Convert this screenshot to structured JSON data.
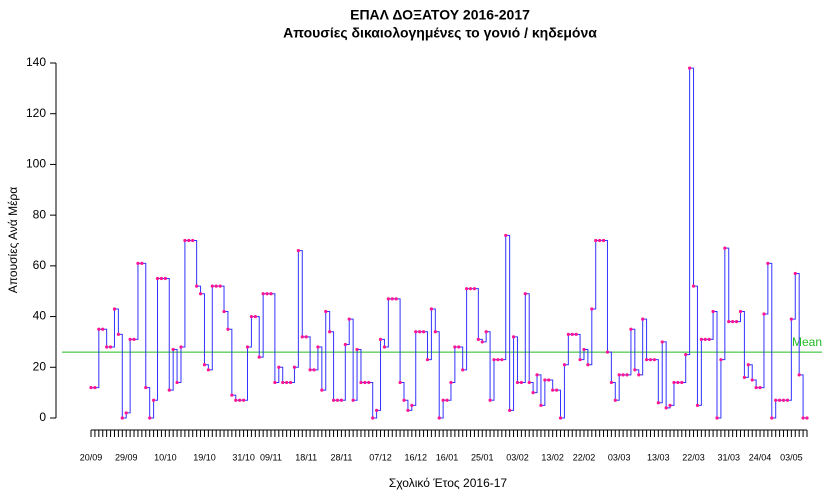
{
  "chart_data": {
    "type": "step",
    "title": "ΕΠΑΛ ΔΟΞΑΤΟΥ 2016-2017",
    "subtitle": "Απουσίες δικαιολογημένες το γονιό / κηδεμόνα",
    "x_label": "Σχολικό Έτος 2016-17",
    "y_label": "Απουσίες Ανά Μέρα",
    "categories": [
      "20/09",
      null,
      null,
      null,
      null,
      null,
      null,
      null,
      null,
      "29/09",
      null,
      null,
      null,
      null,
      null,
      null,
      null,
      null,
      null,
      "10/10",
      null,
      null,
      null,
      null,
      null,
      null,
      null,
      null,
      null,
      "19/10",
      null,
      null,
      null,
      null,
      null,
      null,
      null,
      null,
      null,
      "31/10",
      null,
      null,
      null,
      null,
      null,
      null,
      "09/11",
      null,
      null,
      null,
      null,
      null,
      null,
      null,
      null,
      "18/11",
      null,
      null,
      null,
      null,
      null,
      null,
      null,
      null,
      "28/11",
      null,
      null,
      null,
      null,
      null,
      null,
      null,
      null,
      null,
      "07/12",
      null,
      null,
      null,
      null,
      null,
      null,
      null,
      null,
      "16/12",
      null,
      null,
      null,
      null,
      null,
      null,
      null,
      "16/01",
      null,
      null,
      null,
      null,
      null,
      null,
      null,
      null,
      "25/01",
      null,
      null,
      null,
      null,
      null,
      null,
      null,
      null,
      "03/02",
      null,
      null,
      null,
      null,
      null,
      null,
      null,
      null,
      "13/02",
      null,
      null,
      null,
      null,
      null,
      null,
      null,
      "22/02",
      null,
      null,
      null,
      null,
      null,
      null,
      null,
      null,
      "03/03",
      null,
      null,
      null,
      null,
      null,
      null,
      null,
      null,
      null,
      "13/03",
      null,
      null,
      null,
      null,
      null,
      null,
      null,
      null,
      "22/03",
      null,
      null,
      null,
      null,
      null,
      null,
      null,
      null,
      "31/03",
      null,
      null,
      null,
      null,
      null,
      null,
      null,
      "24/04",
      null,
      null,
      null,
      null,
      null,
      null,
      null,
      "03/05",
      null,
      null,
      null,
      null
    ],
    "series": [
      {
        "line_color": "#3333ff",
        "point_color": "#ff1493",
        "values": [
          12,
          12,
          35,
          35,
          28,
          28,
          43,
          33,
          0,
          2,
          31,
          31,
          61,
          61,
          12,
          0,
          7,
          55,
          55,
          55,
          11,
          27,
          14,
          28,
          70,
          70,
          70,
          52,
          49,
          21,
          19,
          52,
          52,
          52,
          42,
          35,
          9,
          7,
          7,
          7,
          28,
          40,
          40,
          24,
          49,
          49,
          49,
          14,
          20,
          14,
          14,
          14,
          20,
          66,
          32,
          32,
          19,
          19,
          28,
          11,
          42,
          34,
          7,
          7,
          7,
          29,
          39,
          7,
          27,
          14,
          14,
          14,
          0,
          3,
          31,
          28,
          47,
          47,
          47,
          14,
          7,
          3,
          5,
          34,
          34,
          34,
          23,
          43,
          34,
          0,
          7,
          7,
          14,
          28,
          28,
          19,
          51,
          51,
          51,
          31,
          30,
          34,
          7,
          23,
          23,
          23,
          72,
          3,
          32,
          14,
          14,
          49,
          14,
          10,
          17,
          5,
          15,
          15,
          11,
          11,
          0,
          21,
          33,
          33,
          33,
          23,
          27,
          21,
          43,
          70,
          70,
          70,
          26,
          14,
          7,
          17,
          17,
          17,
          35,
          19,
          17,
          39,
          23,
          23,
          23,
          6,
          30,
          4,
          5,
          14,
          14,
          14,
          25,
          138,
          52,
          5,
          31,
          31,
          31,
          42,
          0,
          23,
          67,
          38,
          38,
          38,
          42,
          16,
          21,
          15,
          12,
          12,
          41,
          61,
          0,
          7,
          7,
          7,
          7,
          39,
          57,
          17,
          0,
          0
        ]
      }
    ],
    "mean": 26,
    "mean_label": "Mean",
    "mean_color": "#22bb22",
    "ylim": [
      0,
      140
    ],
    "yticks": [
      0,
      20,
      40,
      60,
      80,
      100,
      120,
      140
    ]
  }
}
